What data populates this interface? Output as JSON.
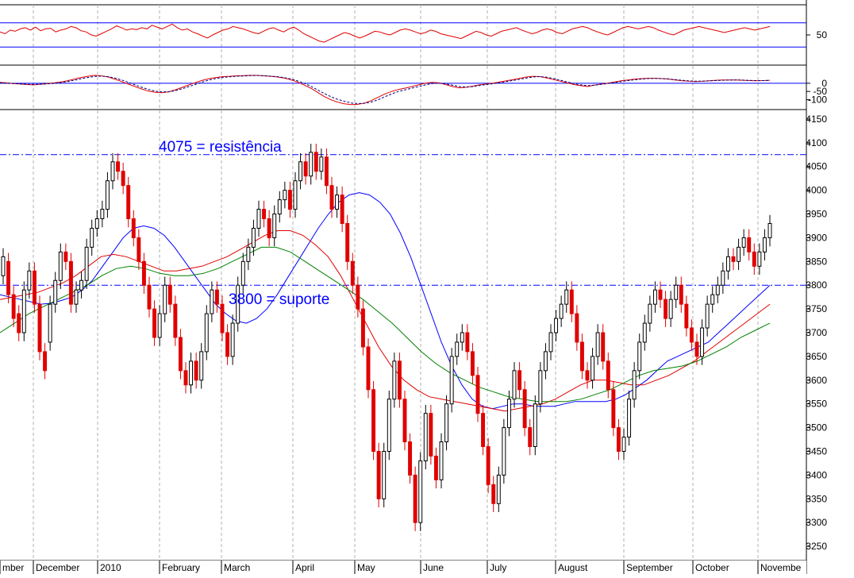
{
  "colors": {
    "background": "#ffffff",
    "frame": "#000000",
    "vgrid": "#b0b0b0",
    "level": "#0000ff",
    "rsi": "#e00000",
    "macd": "#e00000",
    "signal": "#000080",
    "ma_fast": "#0000ff",
    "ma_mid": "#e00000",
    "ma_slow": "#008000",
    "bear": "#e00000",
    "bull": "#000000"
  },
  "chart_data": [
    {
      "type": "line",
      "panel": "rsi",
      "title": "",
      "ylim": [
        0,
        100
      ],
      "yticks": [
        50
      ],
      "levels": [
        30,
        70
      ],
      "series": [
        {
          "values": [
            55,
            52,
            58,
            56,
            60,
            62,
            58,
            63,
            57,
            60,
            61,
            55,
            58,
            60,
            64,
            62,
            57,
            55,
            50,
            48,
            52,
            56,
            60,
            65,
            62,
            58,
            60,
            59,
            62,
            60,
            66,
            63,
            60,
            64,
            68,
            62,
            58,
            60,
            55,
            52,
            48,
            45,
            50,
            54,
            58,
            60,
            64,
            62,
            60,
            57,
            54,
            52,
            56,
            60,
            62,
            58,
            55,
            60,
            63,
            58,
            52,
            48,
            44,
            40,
            38,
            42,
            46,
            50,
            54,
            52,
            48,
            45,
            48,
            52,
            56,
            55,
            52,
            50,
            54,
            58,
            60,
            58,
            55,
            52,
            54,
            58,
            56,
            52,
            50,
            48,
            46,
            44,
            48,
            52,
            56,
            54,
            50,
            48,
            52,
            56,
            58,
            60,
            62,
            58,
            55,
            52,
            54,
            58,
            60,
            58,
            54,
            52,
            56,
            60,
            62,
            64,
            62,
            58,
            55,
            52,
            50,
            54,
            58,
            62,
            64,
            62,
            60,
            62,
            64,
            62,
            58,
            55,
            52,
            50,
            54,
            58,
            60,
            62,
            64,
            62,
            60,
            58,
            56,
            54,
            56,
            58,
            60,
            62,
            60,
            58,
            60,
            62,
            64
          ]
        }
      ]
    },
    {
      "type": "line",
      "panel": "macd",
      "title": "",
      "ylim": [
        -160,
        110
      ],
      "yticks": [
        0,
        -50,
        -100
      ],
      "levels": [
        0
      ],
      "series": [
        {
          "values": [
            5,
            2,
            -2,
            -5,
            -8,
            -10,
            -6,
            -2,
            2,
            8,
            15,
            25,
            35,
            42,
            48,
            45,
            38,
            25,
            10,
            -5,
            -20,
            -35,
            -48,
            -55,
            -58,
            -52,
            -40,
            -25,
            -10,
            5,
            18,
            28,
            35,
            40,
            42,
            45,
            46,
            48,
            48,
            45,
            42,
            38,
            32,
            22,
            8,
            -10,
            -30,
            -55,
            -80,
            -100,
            -115,
            -125,
            -130,
            -128,
            -120,
            -105,
            -85,
            -65,
            -50,
            -38,
            -30,
            -20,
            -10,
            0,
            5,
            2,
            -8,
            -20,
            -28,
            -25,
            -18,
            -10,
            -5,
            0,
            8,
            15,
            22,
            30,
            38,
            42,
            40,
            32,
            22,
            12,
            2,
            -8,
            -15,
            -20,
            -12,
            -5,
            0,
            8,
            15,
            20,
            25,
            28,
            30,
            30,
            28,
            25,
            20,
            15,
            12,
            10,
            12,
            15,
            18,
            20,
            20,
            20,
            18,
            16,
            15,
            16,
            18
          ]
        },
        {
          "values": [
            2,
            0,
            -2,
            -4,
            -6,
            -7,
            -6,
            -4,
            -1,
            4,
            10,
            18,
            27,
            35,
            41,
            43,
            40,
            32,
            20,
            6,
            -10,
            -25,
            -38,
            -48,
            -53,
            -52,
            -45,
            -33,
            -20,
            -6,
            8,
            20,
            29,
            35,
            39,
            42,
            44,
            46,
            47,
            46,
            43,
            40,
            35,
            27,
            15,
            0,
            -18,
            -40,
            -62,
            -82,
            -98,
            -110,
            -120,
            -124,
            -122,
            -114,
            -100,
            -82,
            -65,
            -50,
            -40,
            -30,
            -20,
            -10,
            -2,
            0,
            -4,
            -12,
            -20,
            -23,
            -20,
            -14,
            -8,
            -3,
            3,
            10,
            17,
            24,
            32,
            38,
            40,
            36,
            28,
            18,
            8,
            -2,
            -10,
            -15,
            -12,
            -7,
            -2,
            4,
            10,
            16,
            21,
            25,
            28,
            29,
            28,
            26,
            22,
            18,
            14,
            12,
            12,
            14,
            16,
            18,
            19,
            20,
            19,
            17,
            16,
            16,
            17
          ]
        }
      ]
    },
    {
      "type": "candlestick",
      "panel": "price",
      "title": "",
      "ylim": [
        3220,
        4170
      ],
      "yticks": [
        3250,
        3300,
        3350,
        3400,
        3450,
        3500,
        3550,
        3600,
        3650,
        3700,
        3750,
        3800,
        3850,
        3900,
        3950,
        4000,
        4050,
        4100,
        4150
      ],
      "x_labels": [
        "mber",
        "December",
        "2010",
        "February",
        "March",
        "April",
        "May",
        "June",
        "July",
        "August",
        "September",
        "October",
        "Novembe"
      ],
      "candles": [
        [
          3820,
          3860
        ],
        [
          3850,
          3780
        ],
        [
          3780,
          3730
        ],
        [
          3740,
          3700
        ],
        [
          3700,
          3790
        ],
        [
          3790,
          3830
        ],
        [
          3830,
          3760
        ],
        [
          3760,
          3660
        ],
        [
          3660,
          3620
        ],
        [
          3680,
          3760
        ],
        [
          3760,
          3810
        ],
        [
          3810,
          3870
        ],
        [
          3870,
          3850
        ],
        [
          3850,
          3760
        ],
        [
          3760,
          3790
        ],
        [
          3790,
          3810
        ],
        [
          3810,
          3880
        ],
        [
          3880,
          3920
        ],
        [
          3920,
          3940
        ],
        [
          3940,
          3960
        ],
        [
          3960,
          4020
        ],
        [
          4020,
          4060
        ],
        [
          4060,
          4040
        ],
        [
          4040,
          4010
        ],
        [
          4010,
          3940
        ],
        [
          3940,
          3900
        ],
        [
          3900,
          3850
        ],
        [
          3850,
          3800
        ],
        [
          3800,
          3750
        ],
        [
          3750,
          3690
        ],
        [
          3690,
          3740
        ],
        [
          3740,
          3800
        ],
        [
          3800,
          3760
        ],
        [
          3760,
          3690
        ],
        [
          3690,
          3620
        ],
        [
          3620,
          3590
        ],
        [
          3590,
          3640
        ],
        [
          3640,
          3600
        ],
        [
          3600,
          3660
        ],
        [
          3660,
          3740
        ],
        [
          3740,
          3790
        ],
        [
          3790,
          3760
        ],
        [
          3760,
          3700
        ],
        [
          3700,
          3650
        ],
        [
          3650,
          3720
        ],
        [
          3720,
          3800
        ],
        [
          3800,
          3850
        ],
        [
          3850,
          3880
        ],
        [
          3880,
          3920
        ],
        [
          3920,
          3960
        ],
        [
          3960,
          3940
        ],
        [
          3940,
          3900
        ],
        [
          3900,
          3950
        ],
        [
          3950,
          3980
        ],
        [
          3980,
          4000
        ],
        [
          4000,
          3960
        ],
        [
          3960,
          4020
        ],
        [
          4020,
          4060
        ],
        [
          4060,
          4030
        ],
        [
          4030,
          4080
        ],
        [
          4080,
          4040
        ],
        [
          4040,
          4070
        ],
        [
          4070,
          4010
        ],
        [
          4010,
          3960
        ],
        [
          3960,
          3990
        ],
        [
          3990,
          3930
        ],
        [
          3930,
          3850
        ],
        [
          3850,
          3800
        ],
        [
          3800,
          3750
        ],
        [
          3750,
          3670
        ],
        [
          3670,
          3580
        ],
        [
          3580,
          3450
        ],
        [
          3450,
          3350
        ],
        [
          3350,
          3450
        ],
        [
          3450,
          3560
        ],
        [
          3560,
          3640
        ],
        [
          3640,
          3560
        ],
        [
          3560,
          3470
        ],
        [
          3470,
          3400
        ],
        [
          3400,
          3300
        ],
        [
          3300,
          3430
        ],
        [
          3430,
          3530
        ],
        [
          3530,
          3440
        ],
        [
          3440,
          3390
        ],
        [
          3390,
          3470
        ],
        [
          3470,
          3550
        ],
        [
          3550,
          3650
        ],
        [
          3650,
          3680
        ],
        [
          3680,
          3700
        ],
        [
          3700,
          3660
        ],
        [
          3660,
          3610
        ],
        [
          3610,
          3530
        ],
        [
          3530,
          3460
        ],
        [
          3460,
          3380
        ],
        [
          3380,
          3340
        ],
        [
          3340,
          3400
        ],
        [
          3400,
          3500
        ],
        [
          3500,
          3560
        ],
        [
          3560,
          3620
        ],
        [
          3620,
          3580
        ],
        [
          3580,
          3500
        ],
        [
          3500,
          3460
        ],
        [
          3460,
          3550
        ],
        [
          3550,
          3620
        ],
        [
          3620,
          3660
        ],
        [
          3660,
          3700
        ],
        [
          3700,
          3730
        ],
        [
          3730,
          3760
        ],
        [
          3760,
          3790
        ],
        [
          3790,
          3740
        ],
        [
          3740,
          3680
        ],
        [
          3680,
          3620
        ],
        [
          3620,
          3600
        ],
        [
          3600,
          3650
        ],
        [
          3650,
          3700
        ],
        [
          3700,
          3640
        ],
        [
          3640,
          3580
        ],
        [
          3580,
          3500
        ],
        [
          3500,
          3450
        ],
        [
          3450,
          3480
        ],
        [
          3480,
          3560
        ],
        [
          3560,
          3620
        ],
        [
          3620,
          3680
        ],
        [
          3680,
          3720
        ],
        [
          3720,
          3760
        ],
        [
          3760,
          3790
        ],
        [
          3790,
          3770
        ],
        [
          3770,
          3730
        ],
        [
          3730,
          3770
        ],
        [
          3770,
          3800
        ],
        [
          3800,
          3760
        ],
        [
          3760,
          3710
        ],
        [
          3710,
          3680
        ],
        [
          3680,
          3650
        ],
        [
          3650,
          3710
        ],
        [
          3710,
          3760
        ],
        [
          3760,
          3780
        ],
        [
          3780,
          3800
        ],
        [
          3800,
          3830
        ],
        [
          3830,
          3860
        ],
        [
          3860,
          3850
        ],
        [
          3850,
          3880
        ],
        [
          3880,
          3900
        ],
        [
          3900,
          3870
        ],
        [
          3870,
          3840
        ],
        [
          3840,
          3870
        ],
        [
          3870,
          3900
        ],
        [
          3900,
          3930
        ]
      ],
      "series": [
        {
          "values": [
            3780,
            3775,
            3770,
            3765,
            3760,
            3762,
            3768,
            3775,
            3790,
            3810,
            3840,
            3870,
            3900,
            3920,
            3925,
            3920,
            3905,
            3880,
            3850,
            3820,
            3790,
            3760,
            3740,
            3725,
            3720,
            3730,
            3750,
            3780,
            3815,
            3850,
            3885,
            3920,
            3950,
            3975,
            3990,
            3995,
            3990,
            3975,
            3950,
            3910,
            3860,
            3800,
            3740,
            3680,
            3630,
            3590,
            3560,
            3545,
            3540,
            3545,
            3550,
            3550,
            3545,
            3545,
            3545,
            3550,
            3555,
            3555,
            3555,
            3555,
            3560,
            3570,
            3585,
            3600,
            3620,
            3640,
            3650,
            3660,
            3670,
            3680,
            3700,
            3720,
            3740,
            3760,
            3780,
            3800
          ]
        },
        {
          "values": [
            3770,
            3775,
            3780,
            3785,
            3795,
            3805,
            3820,
            3840,
            3860,
            3865,
            3860,
            3850,
            3840,
            3830,
            3830,
            3835,
            3840,
            3850,
            3860,
            3875,
            3890,
            3905,
            3915,
            3915,
            3905,
            3885,
            3860,
            3820,
            3770,
            3720,
            3670,
            3630,
            3600,
            3580,
            3565,
            3560,
            3555,
            3550,
            3545,
            3540,
            3535,
            3540,
            3545,
            3550,
            3560,
            3575,
            3590,
            3600,
            3600,
            3595,
            3590,
            3590,
            3600,
            3610,
            3625,
            3640,
            3660,
            3680,
            3700,
            3720,
            3740,
            3760
          ]
        },
        {
          "values": [
            3700,
            3720,
            3740,
            3755,
            3770,
            3785,
            3800,
            3820,
            3835,
            3840,
            3835,
            3825,
            3820,
            3820,
            3825,
            3835,
            3850,
            3865,
            3880,
            3880,
            3870,
            3850,
            3830,
            3810,
            3790,
            3770,
            3745,
            3720,
            3690,
            3660,
            3635,
            3615,
            3600,
            3585,
            3575,
            3565,
            3560,
            3555,
            3555,
            3555,
            3560,
            3570,
            3580,
            3595,
            3610,
            3620,
            3625,
            3630,
            3640,
            3655,
            3670,
            3690,
            3705,
            3720
          ]
        }
      ],
      "annotations": [
        {
          "text": "4075 = resistência",
          "level": 4075
        },
        {
          "text": "3800 = suporte",
          "level": 3800
        }
      ]
    }
  ]
}
